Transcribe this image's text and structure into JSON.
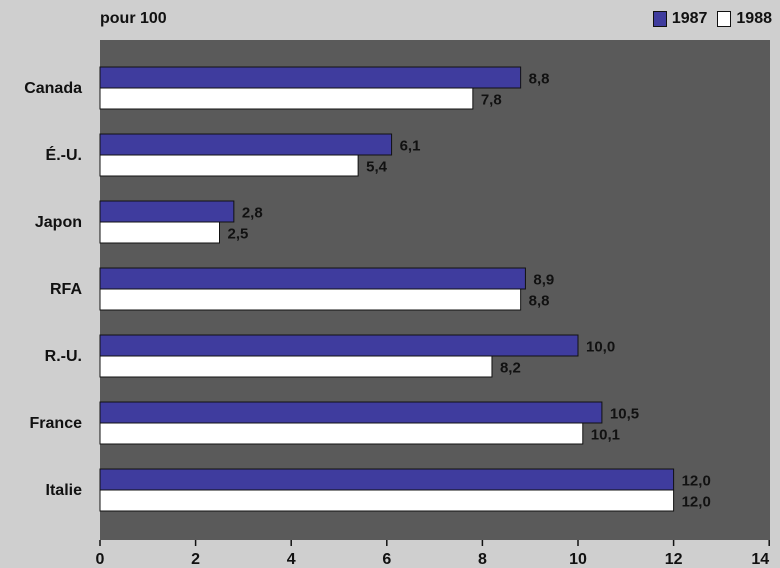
{
  "chart_data": {
    "type": "bar",
    "orientation": "horizontal",
    "unit_label": "pour 100",
    "categories": [
      "Canada",
      "É.-U.",
      "Japon",
      "RFA",
      "R.-U.",
      "France",
      "Italie"
    ],
    "series": [
      {
        "name": "1987",
        "values": [
          8.8,
          6.1,
          2.8,
          8.9,
          10.0,
          10.5,
          12.0
        ],
        "labels": [
          "8,8",
          "6,1",
          "2,8",
          "8,9",
          "10,0",
          "10,5",
          "12,0"
        ],
        "color": "#3f3c9e"
      },
      {
        "name": "1988",
        "values": [
          7.8,
          5.4,
          2.5,
          8.8,
          8.2,
          10.1,
          12.0
        ],
        "labels": [
          "7,8",
          "5,4",
          "2,5",
          "8,8",
          "8,2",
          "10,1",
          "12,0"
        ],
        "color": "#ffffff"
      }
    ],
    "xlim": [
      0,
      14
    ],
    "xticks": [
      "0",
      "2",
      "4",
      "6",
      "8",
      "10",
      "12",
      "14"
    ],
    "plot_background": "#5a5a5a",
    "legend_position": "top-right",
    "grid": false
  }
}
